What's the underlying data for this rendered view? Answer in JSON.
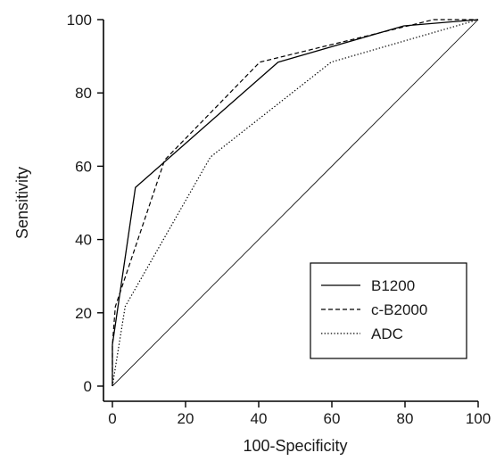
{
  "chart_data": {
    "type": "line",
    "title": "",
    "xlabel": "100-Specificity",
    "ylabel": "Sensitivity",
    "xlim": [
      0,
      100
    ],
    "ylim": [
      0,
      100
    ],
    "xticks": [
      "0",
      "20",
      "40",
      "60",
      "80",
      "100"
    ],
    "yticks": [
      "0",
      "20",
      "40",
      "60",
      "80",
      "100"
    ],
    "grid": false,
    "legend_position": "bottom-right",
    "reference_line": {
      "x": [
        0,
        100
      ],
      "y": [
        0,
        100
      ]
    },
    "series": [
      {
        "name": "B1200",
        "dash": "solid",
        "x": [
          0,
          0,
          6.3,
          45.3,
          79.7,
          100
        ],
        "y": [
          0,
          11.3,
          54.2,
          88.4,
          98.3,
          100
        ]
      },
      {
        "name": "c-B2000",
        "dash": "dashed",
        "x": [
          0,
          0,
          0.8,
          14.3,
          40.3,
          87.8,
          100
        ],
        "y": [
          0,
          11.3,
          21.7,
          61.7,
          88.4,
          100,
          100
        ]
      },
      {
        "name": "ADC",
        "dash": "dotted",
        "x": [
          0,
          3.5,
          26.8,
          59.8,
          100
        ],
        "y": [
          0,
          21.7,
          62.5,
          88.4,
          100
        ]
      }
    ]
  }
}
